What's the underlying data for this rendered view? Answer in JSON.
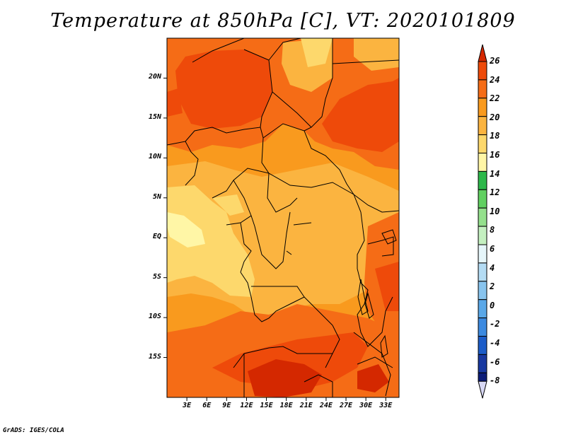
{
  "title": "Temperature at 850hPa [C], VT: 2020101809",
  "footer": "GrADS: IGES/COLA",
  "map": {
    "lat_range": [
      -20,
      25
    ],
    "lon_range": [
      0,
      35
    ],
    "lat_ticks": [
      {
        "value": 20,
        "label": "20N"
      },
      {
        "value": 15,
        "label": "15N"
      },
      {
        "value": 10,
        "label": "10N"
      },
      {
        "value": 5,
        "label": "5N"
      },
      {
        "value": 0,
        "label": "EQ"
      },
      {
        "value": -5,
        "label": "5S"
      },
      {
        "value": -10,
        "label": "10S"
      },
      {
        "value": -15,
        "label": "15S"
      }
    ],
    "lon_ticks": [
      {
        "value": 3,
        "label": "3E"
      },
      {
        "value": 6,
        "label": "6E"
      },
      {
        "value": 9,
        "label": "9E"
      },
      {
        "value": 12,
        "label": "12E"
      },
      {
        "value": 15,
        "label": "15E"
      },
      {
        "value": 18,
        "label": "18E"
      },
      {
        "value": 21,
        "label": "21E"
      },
      {
        "value": 24,
        "label": "24E"
      },
      {
        "value": 27,
        "label": "27E"
      },
      {
        "value": 30,
        "label": "30E"
      },
      {
        "value": 33,
        "label": "33E"
      }
    ]
  },
  "colorbar": {
    "levels": [
      "26",
      "24",
      "22",
      "20",
      "18",
      "16",
      "14",
      "12",
      "10",
      "8",
      "6",
      "4",
      "2",
      "0",
      "-2",
      "-4",
      "-6",
      "-8"
    ],
    "colors": [
      "#d42800",
      "#ee4a0a",
      "#f56c16",
      "#f99a1e",
      "#fbb440",
      "#fdd86c",
      "#fff6a6",
      "#2db84a",
      "#60d060",
      "#94e08c",
      "#c4f0c0",
      "#e6f6fa",
      "#b4dcf4",
      "#88c4ee",
      "#5aa8e8",
      "#3c8ae0",
      "#1c5cc8",
      "#1838a0",
      "#0c1c78"
    ],
    "below_color": "#d8d8f4"
  }
}
